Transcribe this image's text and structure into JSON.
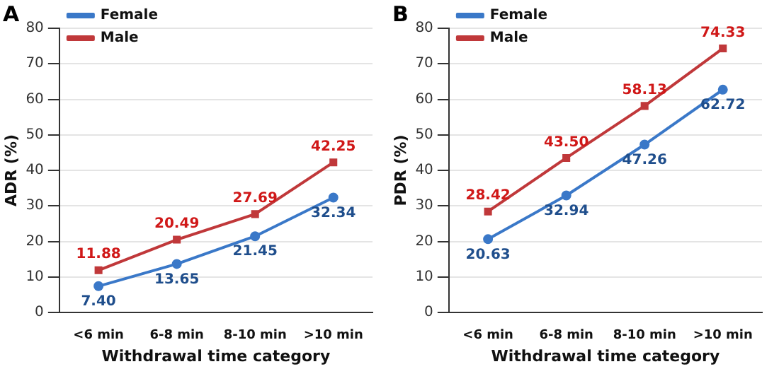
{
  "chart_data": [
    {
      "type": "line",
      "title": "A",
      "xlabel": "Withdrawal time category",
      "ylabel": "ADR (%)",
      "categories": [
        "<6 min",
        "6-8 min",
        "8-10 min",
        ">10 min"
      ],
      "series": [
        {
          "name": "Female",
          "color": "#3a78c8",
          "marker": "circle",
          "values": [
            7.4,
            13.65,
            21.45,
            32.34
          ],
          "value_labels": [
            "7.40",
            "13.65",
            "21.45",
            "32.34"
          ]
        },
        {
          "name": "Male",
          "color": "#c0383a",
          "marker": "square",
          "values": [
            11.88,
            20.49,
            27.69,
            42.25
          ],
          "value_labels": [
            "11.88",
            "20.49",
            "27.69",
            "42.25"
          ]
        }
      ],
      "ylim": [
        0,
        80
      ],
      "yticks": [
        0,
        10,
        20,
        30,
        40,
        50,
        60,
        70,
        80
      ],
      "grid": "y",
      "legend": "top left"
    },
    {
      "type": "line",
      "title": "B",
      "xlabel": "Withdrawal time category",
      "ylabel": "PDR (%)",
      "categories": [
        "<6 min",
        "6-8 min",
        "8-10 min",
        ">10 min"
      ],
      "series": [
        {
          "name": "Female",
          "color": "#3a78c8",
          "marker": "circle",
          "values": [
            20.63,
            32.94,
            47.26,
            62.72
          ],
          "value_labels": [
            "20.63",
            "32.94",
            "47.26",
            "62.72"
          ]
        },
        {
          "name": "Male",
          "color": "#c0383a",
          "marker": "square",
          "values": [
            28.42,
            43.5,
            58.13,
            74.33
          ],
          "value_labels": [
            "28.42",
            "43.50",
            "58.13",
            "74.33"
          ]
        }
      ],
      "ylim": [
        0,
        80
      ],
      "yticks": [
        0,
        10,
        20,
        30,
        40,
        50,
        60,
        70,
        80
      ],
      "grid": "y",
      "legend": "top left"
    }
  ]
}
